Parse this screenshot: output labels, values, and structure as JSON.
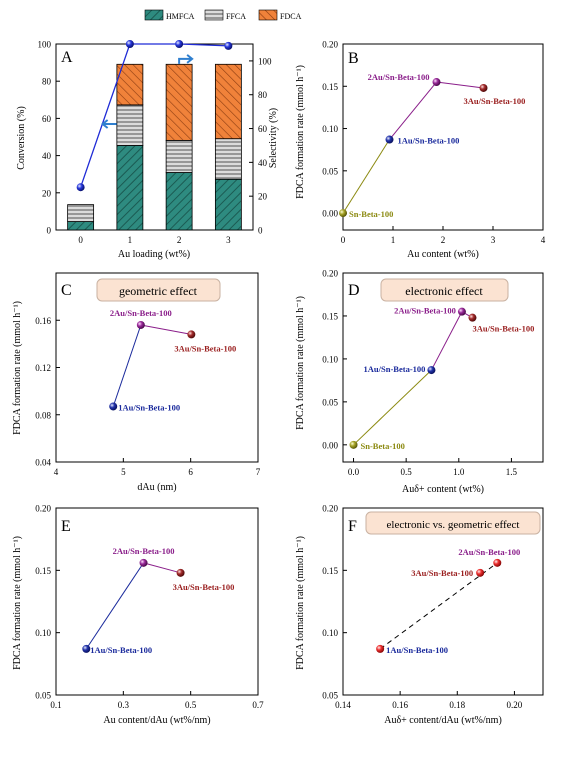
{
  "colors": {
    "HMFCA": "#2e8b80",
    "FFCA": "#c8c8c8",
    "FDCA": "#f0823a",
    "conversion_line": "#1f2bd6",
    "arrow": "#2f7fcf",
    "olive": "#8c8a12",
    "navy": "#1a2a9c",
    "purple": "#8a1e8a",
    "darkred": "#9a1f1f",
    "red": "#e8221f",
    "label_box": "#fbe3d2"
  },
  "chart_data": [
    {
      "panel": "A",
      "type": "bar",
      "categories": [
        "0",
        "1",
        "2",
        "3"
      ],
      "xlabel": "Au loading (wt%)",
      "ylabel": "Conversion (%)",
      "ylabel_right": "Selectivity (%)",
      "ylim": [
        0,
        100
      ],
      "yticks": [
        "0",
        "20",
        "40",
        "60",
        "80",
        "100"
      ],
      "ylim_right": [
        0,
        110
      ],
      "yticks_right": [
        "0",
        "20",
        "40",
        "60",
        "80",
        "100"
      ],
      "legend": [
        "HMFCA",
        "FFCA",
        "FDCA"
      ],
      "series": [
        {
          "name": "HMFCA",
          "values": [
            5,
            50,
            34,
            30
          ]
        },
        {
          "name": "FFCA",
          "values": [
            10,
            24,
            19,
            24
          ]
        },
        {
          "name": "FDCA",
          "values": [
            0,
            24,
            45,
            44
          ]
        }
      ],
      "conversion": [
        23,
        100,
        100,
        99
      ]
    },
    {
      "panel": "B",
      "type": "scatter",
      "xlabel": "Au content (wt%)",
      "ylabel": "FDCA formation rate (mmol h⁻¹)",
      "xlim": [
        0,
        4
      ],
      "ylim": [
        -0.02,
        0.2
      ],
      "xticks": [
        "0",
        "1",
        "2",
        "3",
        "4"
      ],
      "yticks": [
        "0.00",
        "0.05",
        "0.10",
        "0.15",
        "0.20"
      ],
      "points": [
        {
          "label": "Sn-Beta-100",
          "x": 0,
          "y": 0
        },
        {
          "label": "1Au/Sn-Beta-100",
          "x": 0.93,
          "y": 0.087
        },
        {
          "label": "2Au/Sn-Beta-100",
          "x": 1.87,
          "y": 0.155
        },
        {
          "label": "3Au/Sn-Beta-100",
          "x": 2.81,
          "y": 0.148
        }
      ]
    },
    {
      "panel": "C",
      "type": "scatter",
      "title": "geometric effect",
      "xlabel": "dAu (nm)",
      "ylabel": "FDCA formation rate (mmol h⁻¹)",
      "xlim": [
        4,
        7
      ],
      "ylim": [
        0.04,
        0.2
      ],
      "xticks": [
        "4",
        "5",
        "6",
        "7"
      ],
      "yticks": [
        "0.04",
        "0.08",
        "0.12",
        "0.16"
      ],
      "points": [
        {
          "label": "1Au/Sn-Beta-100",
          "x": 4.85,
          "y": 0.087
        },
        {
          "label": "2Au/Sn-Beta-100",
          "x": 5.26,
          "y": 0.156
        },
        {
          "label": "3Au/Sn-Beta-100",
          "x": 6.01,
          "y": 0.148
        }
      ]
    },
    {
      "panel": "D",
      "type": "scatter",
      "title": "electronic effect",
      "xlabel": "Auδ+ content (wt%)",
      "ylabel": "FDCA formation rate (mmol h⁻¹)",
      "xlim": [
        -0.1,
        1.8
      ],
      "ylim": [
        -0.02,
        0.2
      ],
      "xticks": [
        "0.0",
        "0.5",
        "1.0",
        "1.5"
      ],
      "yticks": [
        "0.00",
        "0.05",
        "0.10",
        "0.15",
        "0.20"
      ],
      "points": [
        {
          "label": "Sn-Beta-100",
          "x": 0,
          "y": 0
        },
        {
          "label": "1Au/Sn-Beta-100",
          "x": 0.74,
          "y": 0.087
        },
        {
          "label": "2Au/Sn-Beta-100",
          "x": 1.03,
          "y": 0.155
        },
        {
          "label": "3Au/Sn-Beta-100",
          "x": 1.13,
          "y": 0.148
        }
      ]
    },
    {
      "panel": "E",
      "type": "scatter",
      "xlabel": "Au content/dAu (wt%/nm)",
      "ylabel": "FDCA formation rate (mmol h⁻¹)",
      "xlim": [
        0.1,
        0.7
      ],
      "ylim": [
        0.05,
        0.2
      ],
      "xticks": [
        "0.1",
        "0.3",
        "0.5",
        "0.7"
      ],
      "yticks": [
        "0.05",
        "0.10",
        "0.15",
        "0.20"
      ],
      "points": [
        {
          "label": "1Au/Sn-Beta-100",
          "x": 0.19,
          "y": 0.087
        },
        {
          "label": "2Au/Sn-Beta-100",
          "x": 0.36,
          "y": 0.156
        },
        {
          "label": "3Au/Sn-Beta-100",
          "x": 0.47,
          "y": 0.148
        }
      ]
    },
    {
      "panel": "F",
      "type": "scatter",
      "title": "electronic vs. geometric effect",
      "xlabel": "Auδ+ content/dAu (wt%/nm)",
      "ylabel": "FDCA formation rate (mmol h⁻¹)",
      "xlim": [
        0.14,
        0.21
      ],
      "ylim": [
        0.05,
        0.2
      ],
      "xticks": [
        "0.14",
        "0.16",
        "0.18",
        "0.20"
      ],
      "yticks": [
        "0.05",
        "0.10",
        "0.15",
        "0.20"
      ],
      "points": [
        {
          "label": "1Au/Sn-Beta-100",
          "x": 0.153,
          "y": 0.087
        },
        {
          "label": "3Au/Sn-Beta-100",
          "x": 0.188,
          "y": 0.148
        },
        {
          "label": "2Au/Sn-Beta-100",
          "x": 0.194,
          "y": 0.156
        }
      ]
    }
  ]
}
